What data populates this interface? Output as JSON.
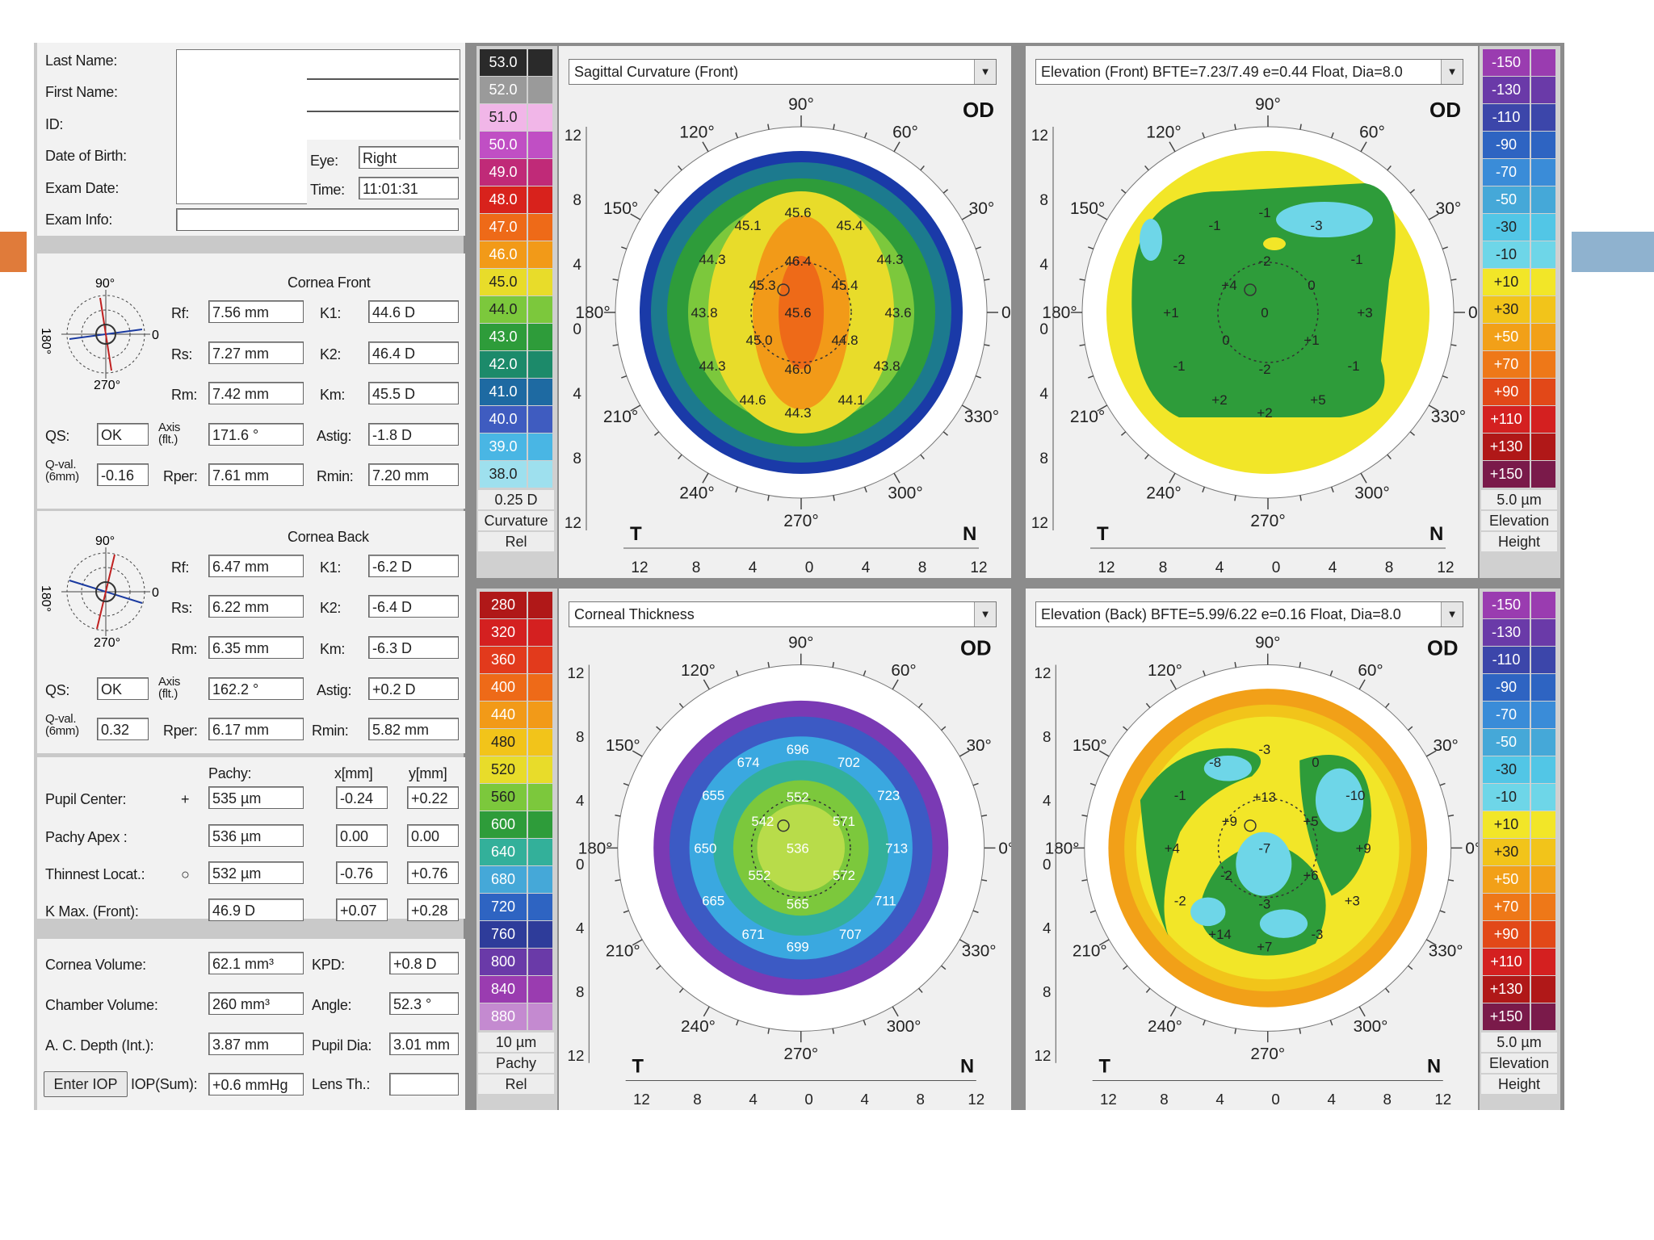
{
  "patient": {
    "last_name_label": "Last Name:",
    "first_name_label": "First Name:",
    "id_label": "ID:",
    "dob_label": "Date of Birth:",
    "exam_date_label": "Exam Date:",
    "exam_info_label": "Exam Info:",
    "eye_label": "Eye:",
    "eye_value": "Right",
    "time_label": "Time:",
    "time_value": "11:01:31"
  },
  "cornea_front": {
    "title": "Cornea Front",
    "compass_top": "90°",
    "compass_left": "180°",
    "compass_right": "0",
    "compass_bottom": "270°",
    "rf_label": "Rf:",
    "rf": "7.56 mm",
    "rs_label": "Rs:",
    "rs": "7.27 mm",
    "rm_label": "Rm:",
    "rm": "7.42 mm",
    "k1_label": "K1:",
    "k1": "44.6 D",
    "k2_label": "K2:",
    "k2": "46.4 D",
    "km_label": "Km:",
    "km": "45.5 D",
    "qs_label": "QS:",
    "qs": "OK",
    "axis_label": "Axis (flt.)",
    "axis": "171.6 °",
    "astig_label": "Astig:",
    "astig": "-1.8 D",
    "qval_label": "Q-val. (6mm)",
    "qval": "-0.16",
    "rper_label": "Rper:",
    "rper": "7.61 mm",
    "rmin_label": "Rmin:",
    "rmin": "7.20 mm"
  },
  "cornea_back": {
    "title": "Cornea Back",
    "compass_top": "90°",
    "compass_left": "180°",
    "compass_right": "0",
    "compass_bottom": "270°",
    "rf_label": "Rf:",
    "rf": "6.47 mm",
    "rs_label": "Rs:",
    "rs": "6.22 mm",
    "rm_label": "Rm:",
    "rm": "6.35 mm",
    "k1_label": "K1:",
    "k1": "-6.2 D",
    "k2_label": "K2:",
    "k2": "-6.4 D",
    "km_label": "Km:",
    "km": "-6.3 D",
    "qs_label": "QS:",
    "qs": "OK",
    "axis_label": "Axis (flt.)",
    "axis": "162.2 °",
    "astig_label": "Astig:",
    "astig": "+0.2 D",
    "qval_label": "Q-val. (6mm)",
    "qval": "0.32",
    "rper_label": "Rper:",
    "rper": "6.17 mm",
    "rmin_label": "Rmin:",
    "rmin": "5.82 mm"
  },
  "pachy": {
    "col_pachy": "Pachy:",
    "col_x": "x[mm]",
    "col_y": "y[mm]",
    "rows": [
      {
        "label": "Pupil Center:",
        "symbol": "+",
        "pachy": "535 µm",
        "x": "-0.24",
        "y": "+0.22"
      },
      {
        "label": "Pachy Apex :",
        "symbol": "",
        "pachy": "536 µm",
        "x": "0.00",
        "y": "0.00"
      },
      {
        "label": "Thinnest Locat.:",
        "symbol": "○",
        "pachy": "532 µm",
        "x": "-0.76",
        "y": "+0.76"
      },
      {
        "label": "K Max. (Front):",
        "symbol": "",
        "pachy": "46.9 D",
        "x": "+0.07",
        "y": "+0.28"
      }
    ]
  },
  "volumes": {
    "cornea_volume_label": "Cornea Volume:",
    "cornea_volume": "62.1 mm³",
    "kpd_label": "KPD:",
    "kpd": "+0.8 D",
    "chamber_volume_label": "Chamber Volume:",
    "chamber_volume": "260 mm³",
    "angle_label": "Angle:",
    "angle": "52.3 °",
    "ac_depth_label": "A. C. Depth (Int.):",
    "ac_depth": "3.87 mm",
    "pupil_dia_label": "Pupil Dia:",
    "pupil_dia": "3.01 mm",
    "enter_iop_label": "Enter IOP",
    "iop_label": "IOP(Sum):",
    "iop": "+0.6 mmHg",
    "lens_label": "Lens Th.:",
    "lens": ""
  },
  "legend_curvature": {
    "values": [
      "53.0",
      "52.0",
      "51.0",
      "50.0",
      "49.0",
      "48.0",
      "47.0",
      "46.0",
      "45.0",
      "44.0",
      "43.0",
      "42.0",
      "41.0",
      "40.0",
      "39.0",
      "38.0"
    ],
    "colors": [
      "#2a2a2a",
      "#9a9a9a",
      "#f1b6e8",
      "#c04fc4",
      "#c02a78",
      "#d8221c",
      "#ee6a18",
      "#f29a18",
      "#e8dc2a",
      "#7cc83c",
      "#2e9c3a",
      "#1c8a6a",
      "#1e6aa2",
      "#3f5cc0",
      "#49b6e4",
      "#9ee0ee"
    ],
    "step": "0.25 D",
    "footer1": "Curvature",
    "footer2": "Rel"
  },
  "legend_pachy": {
    "values": [
      "280",
      "320",
      "360",
      "400",
      "440",
      "480",
      "520",
      "560",
      "600",
      "640",
      "680",
      "720",
      "760",
      "800",
      "840",
      "880"
    ],
    "colors": [
      "#b01818",
      "#d42020",
      "#e23a1c",
      "#ee6a18",
      "#f29a18",
      "#f2c41a",
      "#e8dc2a",
      "#7cc83c",
      "#2e9c3a",
      "#33b09a",
      "#45a8d8",
      "#2e64c2",
      "#2e3c9a",
      "#6a3aa8",
      "#9a3cb0",
      "#c48ad0"
    ],
    "step": "10 µm",
    "footer1": "Pachy",
    "footer2": "Rel"
  },
  "legend_elevation_front": {
    "values": [
      "-150",
      "-130",
      "-110",
      "-90",
      "-70",
      "-50",
      "-30",
      "-10",
      "+10",
      "+30",
      "+50",
      "+70",
      "+90",
      "+110",
      "+130",
      "+150"
    ],
    "colors": [
      "#9a3cb0",
      "#6a3aa8",
      "#3c46aa",
      "#2e64c2",
      "#3a8cd8",
      "#45a8d8",
      "#52c6e6",
      "#6ed6e8",
      "#f2e628",
      "#f2c41a",
      "#f2a018",
      "#ee7818",
      "#e24818",
      "#d42020",
      "#b01818",
      "#7a1a4a"
    ],
    "step": "5.0 µm",
    "footer1": "Elevation",
    "footer2": "Height"
  },
  "legend_elevation_back": {
    "values": [
      "-150",
      "-130",
      "-110",
      "-90",
      "-70",
      "-50",
      "-30",
      "-10",
      "+10",
      "+30",
      "+50",
      "+70",
      "+90",
      "+110",
      "+130",
      "+150"
    ],
    "colors": [
      "#9a3cb0",
      "#6a3aa8",
      "#3c46aa",
      "#2e64c2",
      "#3a8cd8",
      "#45a8d8",
      "#52c6e6",
      "#6ed6e8",
      "#f2e628",
      "#f2c41a",
      "#f2a018",
      "#ee7818",
      "#e24818",
      "#d42020",
      "#b01818",
      "#7a1a4a"
    ],
    "step": "5.0 µm",
    "footer1": "Elevation",
    "footer2": "Height"
  },
  "maps": [
    {
      "key": "sagittal",
      "title": "Sagittal Curvature (Front)",
      "eye": "OD",
      "angles": [
        "90°",
        "120°",
        "60°",
        "150°",
        "30°",
        "180°",
        "0°",
        "210°",
        "330°",
        "240°",
        "300°",
        "270°"
      ],
      "side_left": "T",
      "side_right": "N",
      "axis_ticks": [
        "12",
        "8",
        "4",
        "0",
        "4",
        "8",
        "12"
      ],
      "values": [
        "45.6",
        "45.1",
        "45.4",
        "44.3",
        "46.4",
        "44.3",
        "45.3",
        "45.4",
        "43.8",
        "45.6",
        "43.6",
        "45.0",
        "44.8",
        "44.3",
        "46.0",
        "43.8",
        "44.6",
        "44.1",
        "44.3"
      ]
    },
    {
      "key": "elev_front",
      "title": "Elevation (Front)  BFTE=7.23/7.49 e=0.44 Float, Dia=8.0",
      "eye": "OD",
      "angles": [
        "90°",
        "120°",
        "60°",
        "150°",
        "30°",
        "180°",
        "0°",
        "210°",
        "330°",
        "240°",
        "300°",
        "270°"
      ],
      "side_left": "T",
      "side_right": "N",
      "axis_ticks": [
        "12",
        "8",
        "4",
        "0",
        "4",
        "8",
        "12"
      ],
      "values": [
        "-1",
        "-1",
        "-3",
        "-2",
        "-2",
        "-1",
        "+4",
        "0",
        "+1",
        "0",
        "+3",
        "0",
        "+1",
        "-1",
        "-2",
        "-1",
        "+2",
        "+5",
        "+2"
      ]
    },
    {
      "key": "thickness",
      "title": "Corneal Thickness",
      "eye": "OD",
      "angles": [
        "90°",
        "120°",
        "60°",
        "150°",
        "30°",
        "180°",
        "0°",
        "210°",
        "330°",
        "240°",
        "300°",
        "270°"
      ],
      "side_left": "T",
      "side_right": "N",
      "axis_ticks": [
        "12",
        "8",
        "4",
        "0",
        "4",
        "8",
        "12"
      ],
      "values": [
        "696",
        "674",
        "702",
        "655",
        "552",
        "723",
        "542",
        "571",
        "650",
        "536",
        "713",
        "552",
        "572",
        "665",
        "565",
        "711",
        "671",
        "707",
        "699"
      ]
    },
    {
      "key": "elev_back",
      "title": "Elevation (Back)  BFTE=5.99/6.22 e=0.16 Float, Dia=8.0",
      "eye": "OD",
      "angles": [
        "90°",
        "120°",
        "60°",
        "150°",
        "30°",
        "180°",
        "0°",
        "210°",
        "330°",
        "240°",
        "300°",
        "270°"
      ],
      "side_left": "T",
      "side_right": "N",
      "axis_ticks": [
        "12",
        "8",
        "4",
        "0",
        "4",
        "8",
        "12"
      ],
      "values": [
        "-3",
        "-8",
        "0",
        "-1",
        "+13",
        "-10",
        "+9",
        "+5",
        "+4",
        "-7",
        "+9",
        "-2",
        "+6",
        "-2",
        "-3",
        "+3",
        "+14",
        "-3",
        "+7"
      ]
    }
  ],
  "colors": {
    "slide_accent_left": "#e07b3a",
    "slide_accent_right": "#8fb2cf"
  }
}
